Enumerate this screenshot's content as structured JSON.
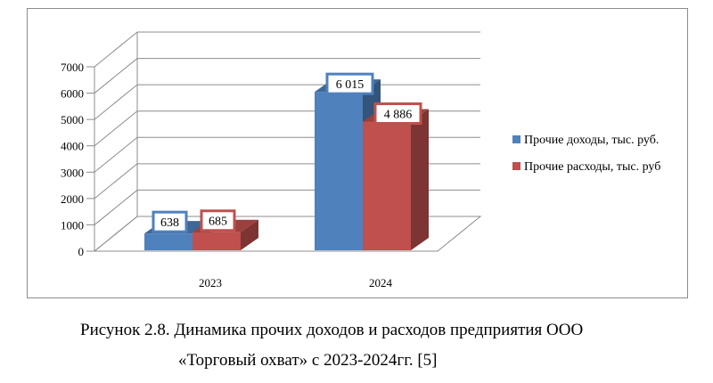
{
  "chart_data": {
    "type": "bar",
    "style": "3d-clustered-column",
    "categories": [
      "2023",
      "2024"
    ],
    "series": [
      {
        "name": "Прочие доходы, тыс. руб.",
        "values": [
          638,
          6015
        ],
        "labels": [
          "638",
          "6 015"
        ],
        "color": "#4f81bd"
      },
      {
        "name": "Прочие расходы, тыс. руб.",
        "values": [
          685,
          4886
        ],
        "labels": [
          "685",
          "4 886"
        ],
        "color": "#c0504d"
      }
    ],
    "yticks": [
      0,
      1000,
      2000,
      3000,
      4000,
      5000,
      6000,
      7000
    ],
    "ylim": [
      0,
      7000
    ],
    "grid": true,
    "legend_position": "right",
    "legend_labels": [
      "Прочие доходы, тыс. руб.",
      "Прочие расходы, тыс. руб"
    ]
  },
  "caption": {
    "line1": "Рисунок 2.8. Динамика прочих доходов и расходов предприятия ООО",
    "line2": "«Торговый охват» с 2023-2024гг. [5]"
  }
}
